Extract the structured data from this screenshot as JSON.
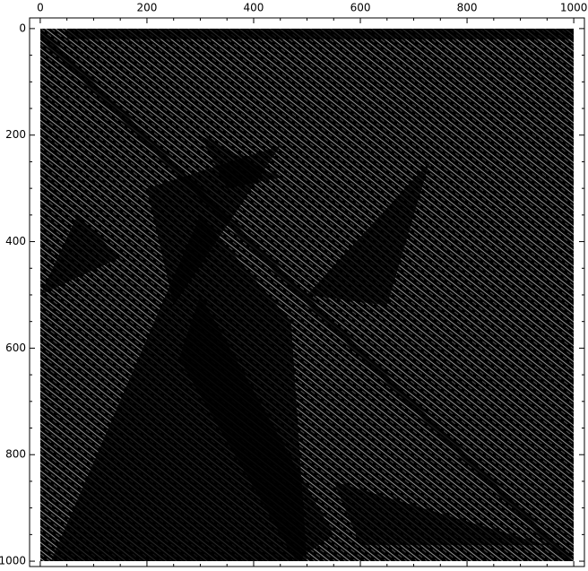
{
  "chart_data": {
    "type": "image",
    "xlim": [
      -20,
      1020
    ],
    "ylim": [
      1010,
      -20
    ],
    "xticks": [
      0,
      200,
      400,
      600,
      800,
      1000
    ],
    "yticks": [
      0,
      200,
      400,
      600,
      800,
      1000
    ]
  }
}
